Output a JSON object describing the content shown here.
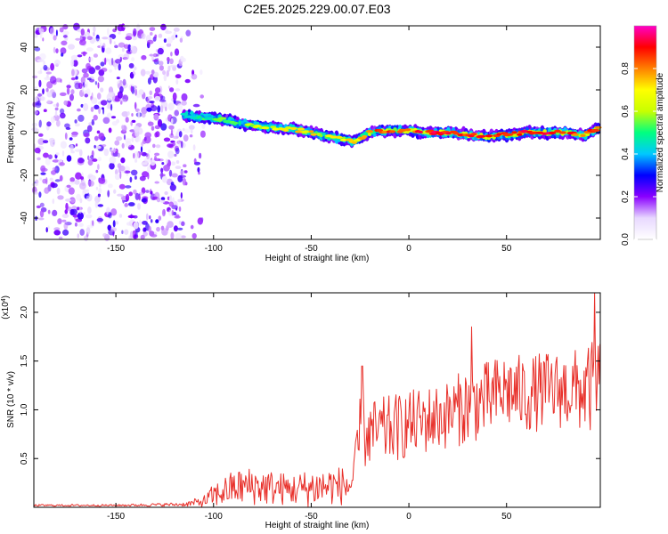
{
  "title": "C2E5.2025.229.00.07.E03",
  "chart_data": [
    {
      "type": "heatmap",
      "xlabel": "Height of straight line (km)",
      "ylabel": "Frequency (Hz)",
      "xlim": [
        -192,
        98
      ],
      "ylim": [
        -50,
        50
      ],
      "x_ticks": [
        -150,
        -100,
        -50,
        0,
        50
      ],
      "y_ticks": [
        -40,
        -20,
        0,
        20,
        40
      ],
      "grid": false,
      "colorbar": {
        "label": "Normalized spectral amplitude",
        "range": [
          0.0,
          1.0
        ],
        "ticks": [
          0.0,
          0.2,
          0.4,
          0.6,
          0.8
        ],
        "colormap": [
          "#ffffff",
          "#e8d8ff",
          "#8a00ff",
          "#0000ff",
          "#00c8ff",
          "#00ff80",
          "#c8ff00",
          "#ffff00",
          "#ff8000",
          "#ff0000",
          "#ff00c8"
        ]
      },
      "noise_region_x": [
        -192,
        -115
      ],
      "ridge": {
        "x": [
          -115,
          -105,
          -95,
          -85,
          -75,
          -65,
          -55,
          -45,
          -35,
          -28,
          -20,
          -10,
          0,
          10,
          20,
          30,
          40,
          50,
          60,
          70,
          80,
          90,
          97
        ],
        "freq": [
          8,
          7,
          6,
          4,
          3,
          2,
          1,
          -1,
          -3,
          -4,
          0,
          1,
          1,
          0,
          0,
          -1,
          -2,
          -1,
          0,
          0,
          0,
          -1,
          2
        ],
        "amplitude": [
          0.45,
          0.5,
          0.55,
          0.6,
          0.6,
          0.65,
          0.7,
          0.75,
          0.7,
          0.7,
          0.8,
          0.85,
          0.85,
          0.9,
          0.9,
          0.9,
          0.85,
          0.85,
          0.9,
          0.9,
          0.85,
          0.85,
          0.8
        ]
      }
    },
    {
      "type": "line",
      "xlabel": "Height of straight line (km)",
      "ylabel": "SNR (10 * v/v)",
      "y_scale_label": "(x10^4)",
      "xlim": [
        -192,
        98
      ],
      "ylim": [
        0,
        2.2
      ],
      "x_ticks": [
        -150,
        -100,
        -50,
        0,
        50
      ],
      "y_ticks": [
        0.5,
        1.0,
        1.5,
        2.0
      ],
      "grid": false,
      "series_color": "#e8302a",
      "envelope": {
        "x": [
          -192,
          -150,
          -115,
          -105,
          -100,
          -90,
          -80,
          -70,
          -60,
          -50,
          -40,
          -30,
          -27,
          -25,
          -20,
          -10,
          0,
          10,
          20,
          30,
          40,
          50,
          60,
          70,
          80,
          90,
          98
        ],
        "mean": [
          0.02,
          0.02,
          0.03,
          0.06,
          0.12,
          0.2,
          0.22,
          0.2,
          0.18,
          0.2,
          0.22,
          0.22,
          0.4,
          0.75,
          0.75,
          0.8,
          0.85,
          0.9,
          0.95,
          1.05,
          1.1,
          1.2,
          1.15,
          1.2,
          1.2,
          1.2,
          1.25
        ],
        "spread": [
          0.01,
          0.01,
          0.02,
          0.06,
          0.12,
          0.18,
          0.2,
          0.18,
          0.16,
          0.2,
          0.2,
          0.2,
          0.3,
          0.4,
          0.35,
          0.35,
          0.35,
          0.35,
          0.35,
          0.4,
          0.4,
          0.4,
          0.4,
          0.4,
          0.4,
          0.45,
          0.5
        ],
        "peaks": [
          {
            "x": -24,
            "y": 1.45
          },
          {
            "x": 32,
            "y": 1.85
          },
          {
            "x": 95,
            "y": 2.2
          }
        ]
      }
    }
  ]
}
